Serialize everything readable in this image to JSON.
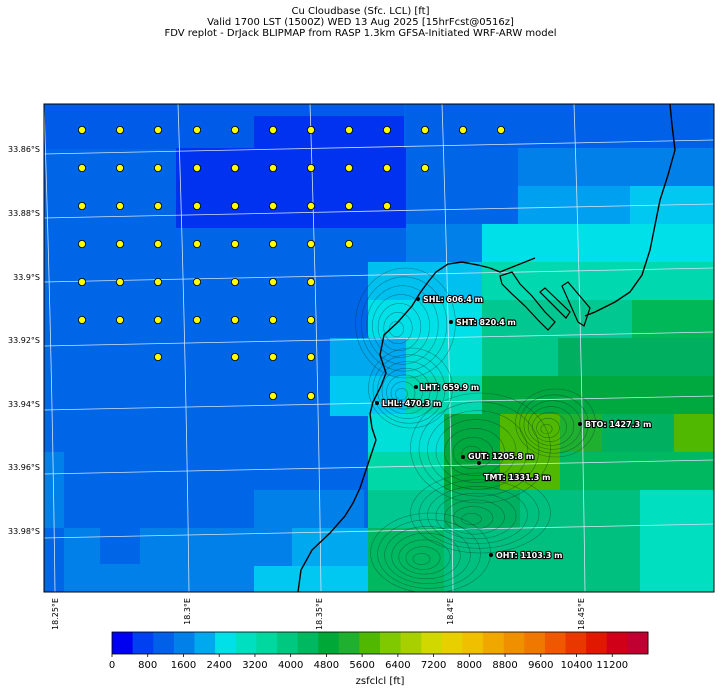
{
  "title": {
    "line1": "Cu Cloudbase (Sfc. LCL) [ft]",
    "line2": "Valid 1700 LST (1500Z) WED 13 Aug 2025 [15hrFcst@0516z]",
    "line3": "FDV replot - DrJack BLIPMAP from RASP 1.3km GFSA-Initiated WRF-ARW model"
  },
  "map": {
    "lat_ticks": [
      "33.86°S",
      "33.88°S",
      "33.9°S",
      "33.92°S",
      "33.94°S",
      "33.96°S",
      "33.98°S"
    ],
    "lon_ticks": [
      "18.25°E",
      "18.3°E",
      "18.35°E",
      "18.4°E",
      "18.45°E"
    ],
    "stations": [
      {
        "name": "SHL",
        "label": "SHL: 606.4 m",
        "lon": 18.387,
        "lat": -33.91
      },
      {
        "name": "SHT",
        "label": "SHT: 820.4 m",
        "lon": 18.399,
        "lat": -33.924
      },
      {
        "name": "LHT",
        "label": "LHT: 659.9 m",
        "lon": 18.386,
        "lat": -33.939
      },
      {
        "name": "LHL",
        "label": "LHL: 470.3 m",
        "lon": 18.371,
        "lat": -33.945
      },
      {
        "name": "BTO",
        "label": "BTO: 1427.3 m",
        "lon": 18.449,
        "lat": -33.953
      },
      {
        "name": "GUT",
        "label": "GUT: 1205.8 m",
        "lon": 18.405,
        "lat": -33.963
      },
      {
        "name": "TMT",
        "label": "TMT: 1331.3 m",
        "lon": 18.411,
        "lat": -33.965
      },
      {
        "name": "OHT",
        "label": "OHT: 1103.3 m",
        "lon": 18.415,
        "lat": -33.992
      }
    ],
    "sounding_points": [
      [
        82,
        130
      ],
      [
        120,
        130
      ],
      [
        158,
        130
      ],
      [
        197,
        130
      ],
      [
        235,
        130
      ],
      [
        273,
        130
      ],
      [
        311,
        130
      ],
      [
        349,
        130
      ],
      [
        387,
        130
      ],
      [
        425,
        130
      ],
      [
        463,
        130
      ],
      [
        501,
        130
      ],
      [
        82,
        168
      ],
      [
        120,
        168
      ],
      [
        158,
        168
      ],
      [
        197,
        168
      ],
      [
        235,
        168
      ],
      [
        273,
        168
      ],
      [
        311,
        168
      ],
      [
        349,
        168
      ],
      [
        387,
        168
      ],
      [
        425,
        168
      ],
      [
        82,
        206
      ],
      [
        120,
        206
      ],
      [
        158,
        206
      ],
      [
        197,
        206
      ],
      [
        235,
        206
      ],
      [
        273,
        206
      ],
      [
        311,
        206
      ],
      [
        349,
        206
      ],
      [
        387,
        206
      ],
      [
        82,
        244
      ],
      [
        120,
        244
      ],
      [
        158,
        244
      ],
      [
        197,
        244
      ],
      [
        235,
        244
      ],
      [
        273,
        244
      ],
      [
        311,
        244
      ],
      [
        349,
        244
      ],
      [
        82,
        282
      ],
      [
        120,
        282
      ],
      [
        158,
        282
      ],
      [
        197,
        282
      ],
      [
        235,
        282
      ],
      [
        273,
        282
      ],
      [
        311,
        282
      ],
      [
        82,
        320
      ],
      [
        120,
        320
      ],
      [
        158,
        320
      ],
      [
        197,
        320
      ],
      [
        235,
        320
      ],
      [
        273,
        320
      ],
      [
        311,
        320
      ],
      [
        158,
        357
      ],
      [
        235,
        357
      ],
      [
        273,
        357
      ],
      [
        311,
        357
      ],
      [
        273,
        396
      ],
      [
        311,
        396
      ]
    ],
    "colors": {
      "point_fill": "#ffff00",
      "coast": "#000000",
      "grid": "#cfe3f5"
    }
  },
  "colorbar": {
    "label": "zsfclcl [ft]",
    "ticks": [
      "0",
      "800",
      "1600",
      "2400",
      "3200",
      "4000",
      "4800",
      "5600",
      "6400",
      "7200",
      "8000",
      "8800",
      "9600",
      "10400",
      "11200"
    ],
    "colors": [
      "#0000f0",
      "#0040f0",
      "#0060e8",
      "#0080e8",
      "#00a8f0",
      "#00e0e8",
      "#00e0c0",
      "#00d8a0",
      "#00c880",
      "#00b860",
      "#00a838",
      "#20b030",
      "#50b800",
      "#80c800",
      "#a8d000",
      "#d0d800",
      "#e8d000",
      "#f0c000",
      "#f0a800",
      "#f09000",
      "#f07800",
      "#f05800",
      "#e83800",
      "#e01800",
      "#d00018",
      "#c00030"
    ],
    "range": [
      0,
      12000
    ]
  }
}
